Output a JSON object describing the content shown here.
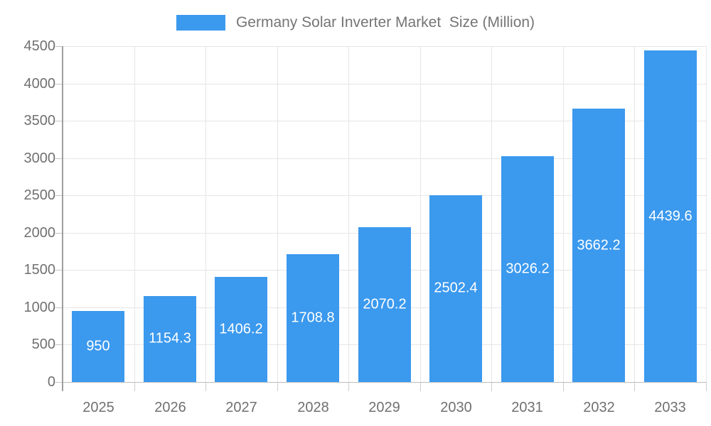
{
  "chart_data": {
    "type": "bar",
    "title": "Germany Solar Inverter Market  Size (Million)",
    "categories": [
      "2025",
      "2026",
      "2027",
      "2028",
      "2029",
      "2030",
      "2031",
      "2032",
      "2033"
    ],
    "values": [
      950,
      1154.3,
      1406.2,
      1708.8,
      2070.2,
      2502.4,
      3026.2,
      3662.2,
      4439.6
    ],
    "xlabel": "",
    "ylabel": "",
    "ylim": [
      0,
      4500
    ],
    "ytick_step": 500,
    "yticks": [
      0,
      500,
      1000,
      1500,
      2000,
      2500,
      3000,
      3500,
      4000,
      4500
    ],
    "grid": true,
    "legend_position": "top",
    "bar_labels_inside": true
  },
  "legend": {
    "label": "Germany Solar Inverter Market  Size (Million)"
  },
  "colors": {
    "bar": "#3B99EE",
    "bar_label": "#ffffff",
    "legend_text": "#757575",
    "axis_text": "#707070",
    "grid": "#e6e6e6",
    "y_axis_line": "#9e9e9e",
    "x_axis_line": "#bdbdbd",
    "background": "#ffffff"
  }
}
